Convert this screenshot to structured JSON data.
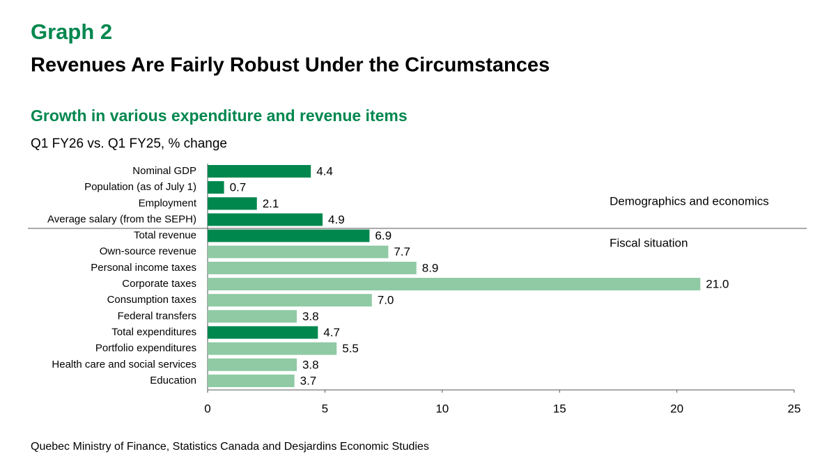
{
  "header": {
    "label": "Graph 2",
    "title": "Revenues Are Fairly Robust Under the Circumstances"
  },
  "chart_data": {
    "type": "barh",
    "title": "Growth in various expenditure and revenue items",
    "subtitle": "Q1 FY26 vs. Q1 FY25, % change",
    "categories": [
      "Nominal GDP",
      "Population (as of July 1)",
      "Employment",
      "Average salary (from the SEPH)",
      "Total revenue",
      "Own-source revenue",
      "Personal income taxes",
      "Corporate taxes",
      "Consumption taxes",
      "Federal transfers",
      "Total expenditures",
      "Portfolio expenditures",
      "Health care and social services",
      "Education"
    ],
    "values": [
      4.4,
      0.7,
      2.1,
      4.9,
      6.9,
      7.7,
      8.9,
      21.0,
      7.0,
      3.8,
      4.7,
      5.5,
      3.8,
      3.7
    ],
    "value_labels": [
      "4.4",
      "0.7",
      "2.1",
      "4.9",
      "6.9",
      "7.7",
      "8.9",
      "21.0",
      "7.0",
      "3.8",
      "4.7",
      "5.5",
      "3.8",
      "3.7"
    ],
    "colors": [
      "#00874e",
      "#00874e",
      "#00874e",
      "#00874e",
      "#00874e",
      "#8fcaa4",
      "#8fcaa4",
      "#8fcaa4",
      "#8fcaa4",
      "#8fcaa4",
      "#00874e",
      "#8fcaa4",
      "#8fcaa4",
      "#8fcaa4"
    ],
    "xlim": [
      0,
      25
    ],
    "xticks": [
      0,
      5,
      10,
      15,
      20,
      25
    ],
    "grid": false,
    "annotations": [
      "Demographics and economics",
      "Fiscal situation"
    ]
  },
  "source": "Quebec Ministry of Finance, Statistics Canada and Desjardins Economic Studies"
}
